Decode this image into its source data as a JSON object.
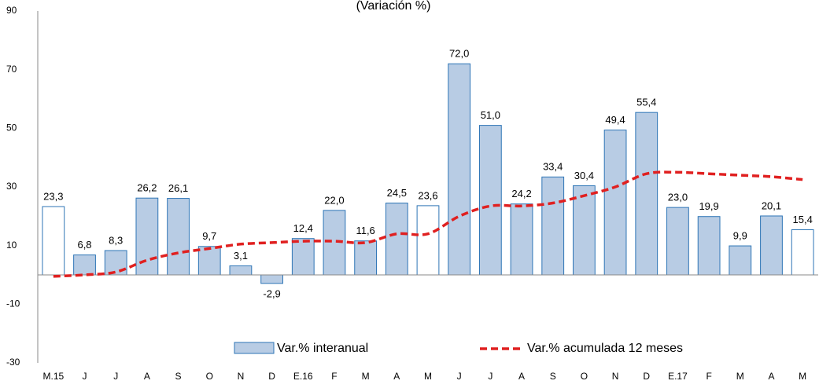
{
  "chart_data": {
    "type": "bar",
    "title": "(Variación %)",
    "categories": [
      "M.15",
      "J",
      "J",
      "A",
      "S",
      "O",
      "N",
      "D",
      "E.16",
      "F",
      "M",
      "A",
      "M",
      "J",
      "J",
      "A",
      "S",
      "O",
      "N",
      "D",
      "E.17",
      "F",
      "M",
      "A",
      "M"
    ],
    "series": [
      {
        "name": "Var.% interanual",
        "type": "bar",
        "color": "#b8cce4",
        "edge_color": "#2e75b6",
        "bar_colors": [
          "#ffffff",
          "#b8cce4",
          "#b8cce4",
          "#b8cce4",
          "#b8cce4",
          "#b8cce4",
          "#b8cce4",
          "#b8cce4",
          "#b8cce4",
          "#b8cce4",
          "#b8cce4",
          "#b8cce4",
          "#ffffff",
          "#b8cce4",
          "#b8cce4",
          "#b8cce4",
          "#b8cce4",
          "#b8cce4",
          "#b8cce4",
          "#b8cce4",
          "#b8cce4",
          "#b8cce4",
          "#b8cce4",
          "#b8cce4",
          "#ffffff"
        ],
        "values": [
          23.3,
          6.8,
          8.3,
          26.2,
          26.1,
          9.7,
          3.1,
          -2.9,
          12.4,
          22.0,
          11.6,
          24.5,
          23.6,
          72.0,
          51.0,
          24.2,
          33.4,
          30.4,
          49.4,
          55.4,
          23.0,
          19.9,
          9.9,
          20.1,
          15.4
        ],
        "value_labels": [
          "23,3",
          "6,8",
          "8,3",
          "26,2",
          "26,1",
          "9,7",
          "3,1",
          "-2,9",
          "12,4",
          "22,0",
          "11,6",
          "24,5",
          "23,6",
          "72,0",
          "51,0",
          "24,2",
          "33,4",
          "30,4",
          "49,4",
          "55,4",
          "23,0",
          "19,9",
          "9,9",
          "20,1",
          "15,4"
        ]
      },
      {
        "name": "Var.% acumulada 12 meses",
        "type": "line",
        "color": "#e02020",
        "dashed": true,
        "values": [
          -0.5,
          0,
          1,
          5,
          7.5,
          9,
          10.5,
          11,
          11.5,
          11.5,
          11,
          14,
          14,
          20,
          23.5,
          23.5,
          24.5,
          27,
          30,
          34.5,
          35,
          34.5,
          34,
          33.5,
          32.5
        ]
      }
    ],
    "ylim": [
      -30,
      90
    ],
    "yticks": [
      -30,
      -10,
      10,
      30,
      50,
      70,
      90
    ],
    "grid": false
  }
}
